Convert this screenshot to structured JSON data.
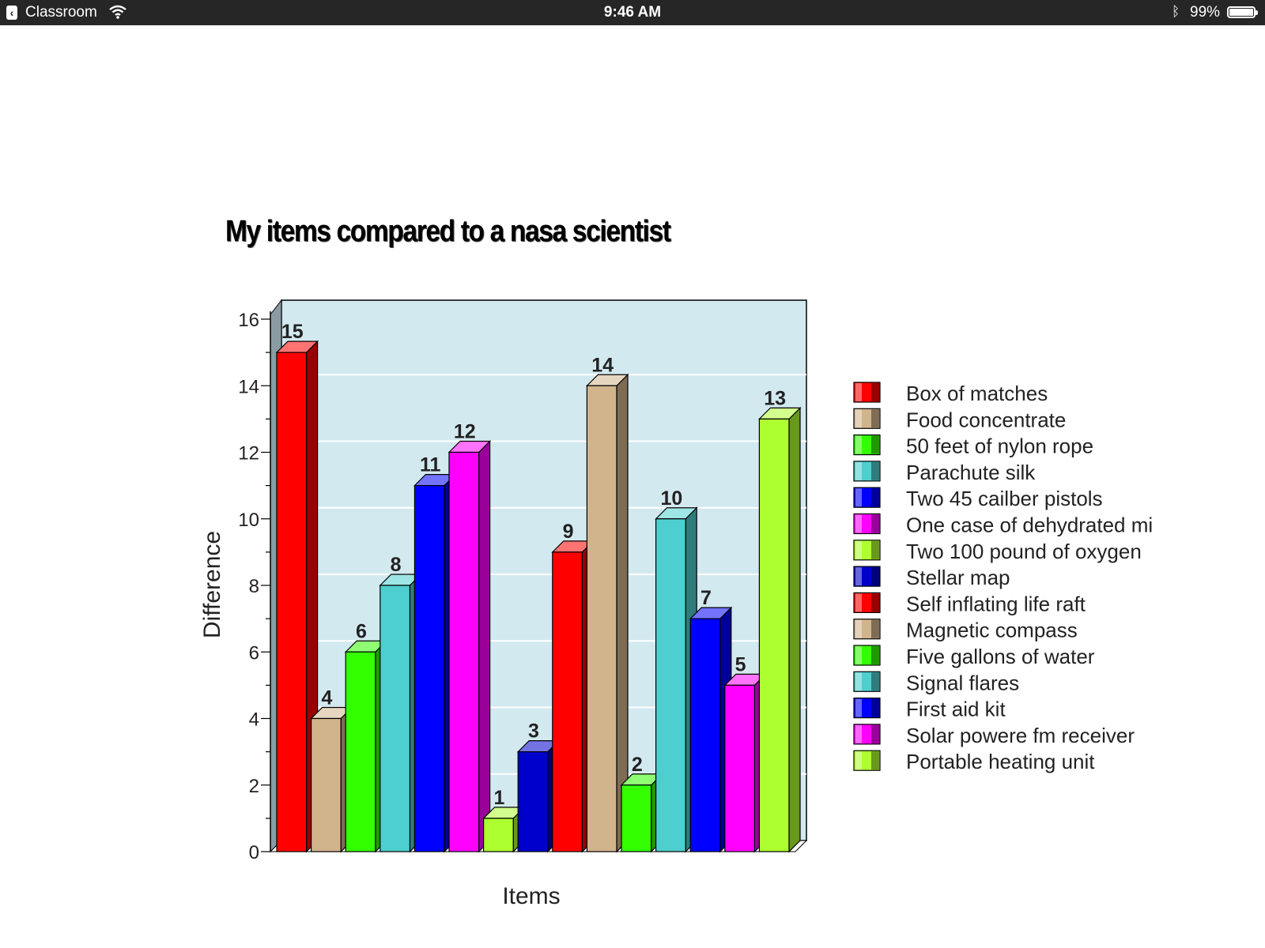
{
  "status_bar": {
    "back_app": "Classroom",
    "time": "9:46 AM",
    "battery": "99%",
    "battery_level": 0.99,
    "icons": [
      "back-chevron-icon",
      "wifi-icon",
      "bluetooth-icon",
      "battery-icon"
    ]
  },
  "chart_data": {
    "type": "bar",
    "style": "3d",
    "title": "My items compared to a nasa scientist",
    "xlabel": "Items",
    "ylabel": "Difference",
    "ylim": [
      0,
      16
    ],
    "y_ticks": [
      0,
      2,
      4,
      6,
      8,
      10,
      12,
      14,
      16
    ],
    "grid": true,
    "plot_background": "#d3e9f0",
    "legend_position": "right",
    "categories": [
      "Box of matches",
      "Food concentrate",
      "50 feet of nylon rope",
      "Parachute silk",
      "Two 45 cailber pistols",
      "One case of dehydrated mi",
      "Two 100 pound of oxygen",
      "Stellar map",
      "Self inflating life raft",
      "Magnetic compass",
      "Five gallons of water",
      "Signal flares",
      "First aid kit",
      "Solar powere fm receiver",
      "Portable heating unit"
    ],
    "values": [
      15,
      4,
      6,
      8,
      11,
      12,
      1,
      3,
      9,
      14,
      2,
      10,
      7,
      5,
      13
    ],
    "colors": [
      "#ff0000",
      "#d2b48c",
      "#33ff00",
      "#4ecfcf",
      "#0000ff",
      "#ff00ff",
      "#adff2f",
      "#0000cc",
      "#ff0000",
      "#d2b48c",
      "#33ff00",
      "#4ecfcf",
      "#0000ff",
      "#ff00ff",
      "#adff2f"
    ]
  }
}
